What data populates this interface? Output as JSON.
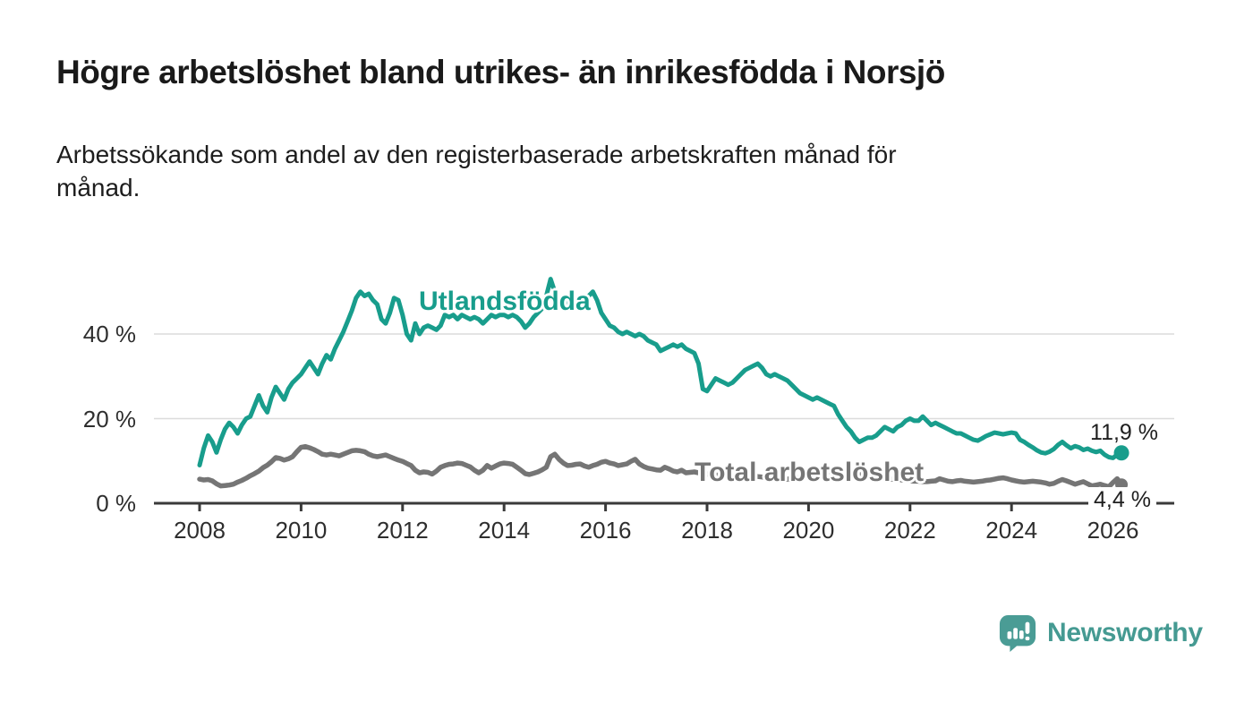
{
  "header": {
    "title": "Högre arbetslöshet bland utrikes- än inrikesfödda i Norsjö",
    "subtitle": "Arbetssökande som andel av den registerbaserade arbetskraften månad för\nmånad."
  },
  "chart_labels": {
    "utlandsfodda": "Utlandsfödda",
    "total": "Total arbetslöshet",
    "end_value_utlandsfodda": "11,9 %",
    "end_value_total": "4,4 %"
  },
  "footer": {
    "brand": "Newsworthy",
    "logo_icon": "bar-chart-speech-bubble-icon"
  },
  "colors": {
    "teal_line": "#189d8c",
    "gray_line": "#757575",
    "grid": "#dcdcdc",
    "axis": "#3a3a3a",
    "text": "#1a1a1a",
    "logo_teal": "#459a92"
  },
  "chart_data": {
    "type": "line",
    "title": "Högre arbetslöshet bland utrikes- än inrikesfödda i Norsjö",
    "subtitle": "Arbetssökande som andel av den registerbaserade arbetskraften månad för månad.",
    "unit": "%",
    "x_start_year": 2008,
    "points_per_year": 12,
    "xlim": [
      2008,
      2026.3
    ],
    "ylim": [
      0,
      55
    ],
    "grid": "horizontal",
    "x_ticks": [
      "2008",
      "2010",
      "2012",
      "2014",
      "2016",
      "2018",
      "2020",
      "2022",
      "2024",
      "2026"
    ],
    "y_ticks": [
      {
        "value": 0,
        "label": "0 %"
      },
      {
        "value": 20,
        "label": "20 %"
      },
      {
        "value": 40,
        "label": "40 %"
      }
    ],
    "series": [
      {
        "name": "Total arbetslöshet",
        "color_key": "gray_line",
        "end_value": 4.4,
        "values": [
          5.7,
          5.5,
          5.6,
          5.3,
          4.6,
          4.1,
          4.2,
          4.3,
          4.5,
          5.0,
          5.4,
          5.9,
          6.5,
          7.0,
          7.6,
          8.4,
          9.0,
          9.8,
          10.8,
          10.6,
          10.2,
          10.5,
          11.0,
          12.2,
          13.2,
          13.4,
          13.1,
          12.7,
          12.2,
          11.6,
          11.4,
          11.6,
          11.4,
          11.2,
          11.6,
          12.0,
          12.4,
          12.5,
          12.4,
          12.2,
          11.6,
          11.2,
          11.0,
          11.2,
          11.4,
          11.0,
          10.6,
          10.2,
          9.9,
          9.4,
          8.9,
          7.8,
          7.2,
          7.4,
          7.3,
          6.9,
          7.6,
          8.5,
          8.9,
          9.2,
          9.3,
          9.5,
          9.4,
          9.0,
          8.6,
          7.8,
          7.2,
          7.8,
          8.9,
          8.3,
          8.8,
          9.3,
          9.5,
          9.4,
          9.2,
          8.5,
          7.8,
          7.0,
          6.8,
          7.1,
          7.4,
          7.9,
          8.5,
          11.0,
          11.6,
          10.4,
          9.5,
          8.9,
          9.0,
          9.2,
          9.3,
          8.8,
          8.5,
          8.9,
          9.2,
          9.7,
          9.9,
          9.5,
          9.3,
          8.9,
          9.1,
          9.3,
          9.9,
          10.4,
          9.3,
          8.7,
          8.3,
          8.1,
          7.9,
          7.8,
          8.5,
          8.1,
          7.6,
          7.4,
          7.8,
          7.2,
          7.3,
          7.4,
          7.2,
          7.0,
          6.9,
          6.8,
          6.7,
          6.6,
          6.4,
          6.3,
          6.2,
          6.3,
          6.4,
          6.5,
          6.6,
          6.5,
          6.3,
          6.2,
          6.0,
          5.9,
          5.8,
          5.7,
          5.6,
          5.7,
          5.9,
          6.0,
          6.1,
          6.2,
          6.3,
          6.5,
          6.8,
          7.1,
          7.4,
          7.5,
          7.6,
          7.5,
          7.3,
          7.1,
          7.0,
          6.9,
          6.8,
          6.7,
          6.5,
          6.3,
          6.2,
          6.0,
          5.9,
          5.8,
          5.7,
          5.6,
          5.5,
          5.4,
          5.3,
          5.2,
          5.2,
          5.1,
          5.1,
          5.2,
          5.3,
          5.8,
          5.5,
          5.2,
          5.1,
          5.3,
          5.4,
          5.2,
          5.1,
          5.0,
          5.1,
          5.2,
          5.4,
          5.5,
          5.7,
          5.9,
          6.0,
          5.8,
          5.5,
          5.3,
          5.1,
          5.0,
          5.1,
          5.2,
          5.1,
          5.0,
          4.8,
          4.5,
          4.7,
          5.2,
          5.6,
          5.3,
          4.9,
          4.5,
          4.8,
          5.1,
          4.6,
          4.1,
          4.3,
          4.5,
          4.2,
          3.9,
          4.9,
          5.8,
          4.4
        ]
      },
      {
        "name": "Utlandsfödda",
        "color_key": "teal_line",
        "end_value": 11.9,
        "values": [
          9.0,
          13.0,
          16.0,
          14.5,
          12.0,
          15.0,
          17.5,
          19.0,
          18.0,
          16.5,
          18.5,
          20.0,
          20.5,
          23.0,
          25.5,
          23.0,
          21.5,
          25.0,
          27.5,
          26.0,
          24.5,
          27.0,
          28.5,
          29.5,
          30.5,
          32.0,
          33.5,
          32.0,
          30.5,
          33.0,
          35.0,
          34.0,
          36.5,
          38.5,
          40.5,
          43.0,
          45.5,
          48.5,
          50.0,
          49.0,
          49.5,
          48.0,
          47.0,
          43.5,
          42.5,
          45.0,
          48.5,
          48.0,
          44.5,
          40.0,
          38.5,
          42.5,
          40.0,
          41.5,
          42.0,
          41.5,
          41.0,
          42.0,
          44.5,
          44.0,
          44.5,
          43.5,
          44.5,
          44.0,
          43.5,
          44.0,
          43.5,
          42.5,
          43.5,
          44.5,
          44.0,
          44.5,
          44.5,
          44.0,
          44.5,
          44.0,
          43.0,
          41.5,
          42.5,
          44.0,
          45.0,
          46.0,
          49.0,
          53.0,
          50.0,
          48.0,
          47.0,
          47.5,
          48.0,
          47.5,
          48.0,
          48.5,
          49.0,
          50.0,
          48.0,
          45.0,
          43.5,
          42.0,
          41.5,
          40.5,
          40.0,
          40.5,
          40.0,
          39.5,
          40.0,
          39.5,
          38.5,
          38.0,
          37.5,
          36.0,
          36.5,
          37.0,
          37.5,
          37.0,
          37.5,
          36.5,
          36.0,
          35.5,
          33.0,
          27.0,
          26.5,
          28.0,
          29.5,
          29.0,
          28.5,
          28.0,
          28.5,
          29.5,
          30.5,
          31.5,
          32.0,
          32.5,
          33.0,
          32.0,
          30.5,
          30.0,
          30.5,
          30.0,
          29.5,
          29.0,
          28.0,
          27.0,
          26.0,
          25.5,
          25.0,
          24.5,
          25.0,
          24.5,
          24.0,
          23.5,
          23.0,
          21.0,
          19.5,
          18.0,
          17.0,
          15.5,
          14.5,
          15.0,
          15.5,
          15.5,
          16.0,
          17.0,
          18.0,
          17.5,
          17.0,
          18.0,
          18.5,
          19.5,
          20.0,
          19.5,
          19.5,
          20.5,
          19.5,
          18.5,
          19.0,
          18.5,
          18.0,
          17.5,
          17.0,
          16.5,
          16.5,
          16.0,
          15.5,
          15.0,
          14.8,
          15.3,
          15.9,
          16.3,
          16.7,
          16.5,
          16.3,
          16.5,
          16.7,
          16.5,
          15.0,
          14.5,
          13.8,
          13.2,
          12.5,
          12.0,
          11.8,
          12.2,
          12.8,
          13.8,
          14.5,
          13.7,
          13.0,
          13.5,
          13.2,
          12.6,
          12.9,
          12.4,
          12.1,
          12.4,
          11.5,
          10.9,
          10.7,
          11.5,
          11.9
        ]
      }
    ],
    "legend_position": "inline-labels"
  }
}
